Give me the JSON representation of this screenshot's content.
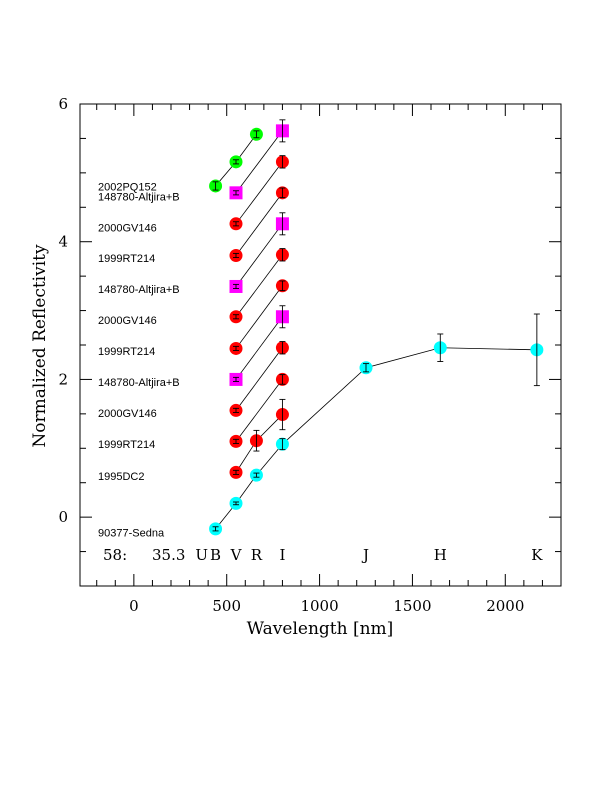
{
  "chart_data": {
    "type": "scatter",
    "xlabel": "Wavelength [nm]",
    "ylabel": "Normalized Reflectivity",
    "xlim": [
      -290,
      2300
    ],
    "ylim": [
      -1.0,
      6.0
    ],
    "x_ticks": [
      0,
      500,
      1000,
      1500,
      2000
    ],
    "y_ticks": [
      0,
      2,
      4,
      6
    ],
    "x_tick_labels": [
      "0",
      "500",
      "1000",
      "1500",
      "2000"
    ],
    "y_tick_labels": [
      "0",
      "2",
      "4",
      "6"
    ],
    "corner_label": "58:",
    "corner_value": "35.3",
    "bands": [
      {
        "name": "U",
        "x": 365
      },
      {
        "name": "B",
        "x": 440
      },
      {
        "name": "V",
        "x": 550
      },
      {
        "name": "R",
        "x": 660
      },
      {
        "name": "I",
        "x": 800
      },
      {
        "name": "J",
        "x": 1250
      },
      {
        "name": "H",
        "x": 1650
      },
      {
        "name": "K",
        "x": 2170
      }
    ],
    "colors": {
      "cyan": "#00ffff",
      "red": "#ff0000",
      "magenta": "#ff00ff",
      "green": "#00ff00"
    },
    "series": [
      {
        "name": "90377-Sedna",
        "label_y": -0.22,
        "color": "#00ffff",
        "marker": "circle",
        "points": [
          {
            "x": 440,
            "y": -0.17,
            "err": 0.03
          },
          {
            "x": 550,
            "y": 0.2,
            "err": 0.02
          },
          {
            "x": 660,
            "y": 0.61,
            "err": 0.03
          },
          {
            "x": 800,
            "y": 1.06,
            "err": 0.08
          },
          {
            "x": 1250,
            "y": 2.17,
            "err": 0.06
          },
          {
            "x": 1650,
            "y": 2.46,
            "err": 0.2
          },
          {
            "x": 2170,
            "y": 2.43,
            "err": 0.52
          }
        ]
      },
      {
        "name": "1995DC2",
        "label_y": 0.6,
        "color": "#ff0000",
        "marker": "circle",
        "points": [
          {
            "x": 550,
            "y": 0.65,
            "err": 0.03
          },
          {
            "x": 660,
            "y": 1.11,
            "err": 0.15
          },
          {
            "x": 800,
            "y": 1.49,
            "err": 0.22
          }
        ]
      },
      {
        "name": "1999RT214",
        "label_y": 1.06,
        "color": "#ff0000",
        "marker": "circle",
        "points": [
          {
            "x": 550,
            "y": 1.1,
            "err": 0.03
          },
          {
            "x": 800,
            "y": 2.0,
            "err": 0.07
          }
        ]
      },
      {
        "name": "2000GV146",
        "label_y": 1.51,
        "color": "#ff0000",
        "marker": "circle",
        "points": [
          {
            "x": 550,
            "y": 1.55,
            "err": 0.03
          },
          {
            "x": 800,
            "y": 2.46,
            "err": 0.09
          }
        ]
      },
      {
        "name": "148780-Altjira+B",
        "label_y": 1.96,
        "color": "#ff00ff",
        "marker": "square",
        "points": [
          {
            "x": 550,
            "y": 2.0,
            "err": 0.03
          },
          {
            "x": 800,
            "y": 2.91,
            "err": 0.16
          }
        ]
      },
      {
        "name": "1999RT214",
        "label_y": 2.41,
        "color": "#ff0000",
        "marker": "circle",
        "points": [
          {
            "x": 550,
            "y": 2.45,
            "err": 0.03
          },
          {
            "x": 800,
            "y": 3.36,
            "err": 0.07
          }
        ]
      },
      {
        "name": "2000GV146",
        "label_y": 2.86,
        "color": "#ff0000",
        "marker": "circle",
        "points": [
          {
            "x": 550,
            "y": 2.91,
            "err": 0.03
          },
          {
            "x": 800,
            "y": 3.81,
            "err": 0.09
          }
        ]
      },
      {
        "name": "148780-Altjira+B",
        "label_y": 3.31,
        "color": "#ff00ff",
        "marker": "square",
        "points": [
          {
            "x": 550,
            "y": 3.35,
            "err": 0.03
          },
          {
            "x": 800,
            "y": 4.26,
            "err": 0.16
          }
        ]
      },
      {
        "name": "1999RT214",
        "label_y": 3.76,
        "color": "#ff0000",
        "marker": "circle",
        "points": [
          {
            "x": 550,
            "y": 3.8,
            "err": 0.03
          },
          {
            "x": 800,
            "y": 4.71,
            "err": 0.07
          }
        ]
      },
      {
        "name": "2000GV146",
        "label_y": 4.21,
        "color": "#ff0000",
        "marker": "circle",
        "points": [
          {
            "x": 550,
            "y": 4.26,
            "err": 0.03
          },
          {
            "x": 800,
            "y": 5.16,
            "err": 0.09
          }
        ]
      },
      {
        "name": "148780-Altjira+B",
        "label_y": 4.66,
        "color": "#ff00ff",
        "marker": "square",
        "points": [
          {
            "x": 550,
            "y": 4.71,
            "err": 0.03
          },
          {
            "x": 800,
            "y": 5.61,
            "err": 0.16
          }
        ]
      },
      {
        "name": "2002PQ152",
        "label_y": 4.8,
        "color": "#00ff00",
        "marker": "circle",
        "points": [
          {
            "x": 440,
            "y": 4.81,
            "err": 0.06
          },
          {
            "x": 550,
            "y": 5.16,
            "err": 0.03
          },
          {
            "x": 660,
            "y": 5.56,
            "err": 0.05
          }
        ]
      }
    ]
  }
}
